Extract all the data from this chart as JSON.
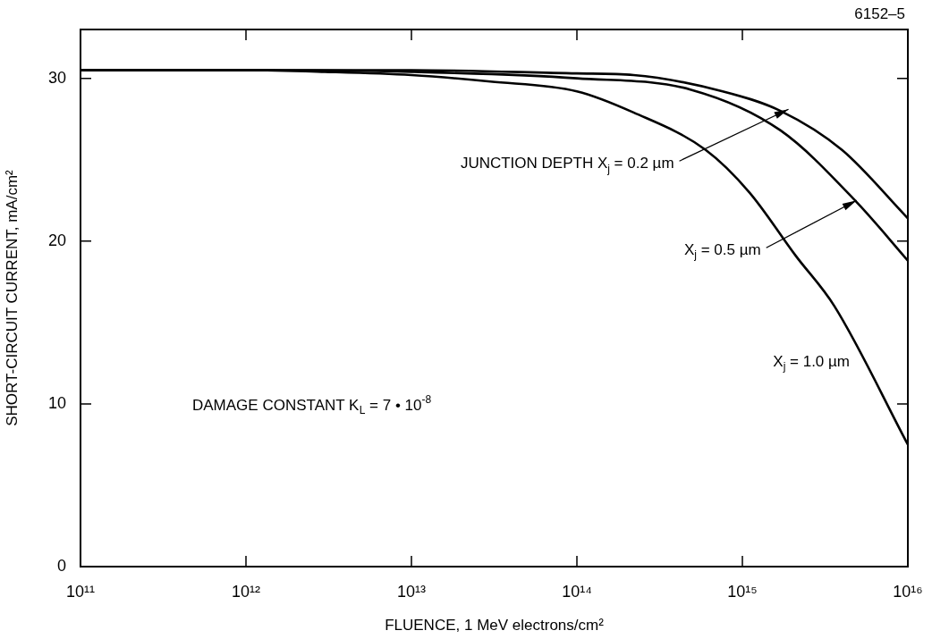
{
  "chart_data": {
    "type": "line",
    "xlabel": "FLUENCE, 1 MeV electrons/cm²",
    "ylabel": "SHORT-CIRCUIT CURRENT, mA/cm²",
    "log": "x",
    "grid": false,
    "legend": false,
    "marker": "none",
    "line_style": "solid",
    "xlim": [
      100000000000.0,
      1e+16
    ],
    "ylim": [
      0,
      33
    ],
    "xticks": [
      {
        "value": 100000000000.0,
        "label": "10¹¹"
      },
      {
        "value": 1000000000000.0,
        "label": "10¹²"
      },
      {
        "value": 10000000000000.0,
        "label": "10¹³"
      },
      {
        "value": 100000000000000.0,
        "label": "10¹⁴"
      },
      {
        "value": 1000000000000000.0,
        "label": "10¹⁵"
      },
      {
        "value": 1e+16,
        "label": "10¹⁶"
      }
    ],
    "yticks": [
      0,
      10,
      20,
      30
    ],
    "series": [
      {
        "color": "#000000",
        "x": [
          100000000000.0,
          1000000000000.0,
          10000000000000.0,
          100000000000000.0,
          220000000000000.0,
          760000000000000.0,
          1700000000000000.0,
          4000000000000000.0,
          1e+16
        ],
        "values": [
          30.5,
          30.5,
          30.5,
          30.3,
          30.2,
          29.2,
          28.0,
          25.6,
          21.4
        ]
      },
      {
        "color": "#000000",
        "x": [
          100000000000.0,
          1000000000000.0,
          10000000000000.0,
          100000000000000.0,
          490000000000000.0,
          1700000000000000.0,
          4900000000000000.0,
          1e+16
        ],
        "values": [
          30.5,
          30.5,
          30.4,
          30.0,
          29.3,
          26.8,
          22.4,
          18.8
        ]
      },
      {
        "color": "#000000",
        "x": [
          100000000000.0,
          1000000000000.0,
          3000000000000.0,
          10000000000000.0,
          30000000000000.0,
          100000000000000.0,
          220000000000000.0,
          600000000000000.0,
          1100000000000000.0,
          2100000000000000.0,
          3600000000000000.0,
          1e+16
        ],
        "values": [
          30.5,
          30.5,
          30.4,
          30.2,
          29.8,
          29.2,
          27.9,
          25.6,
          23.0,
          19.1,
          16.0,
          7.5
        ]
      }
    ],
    "annotations": [
      {
        "text": "JUNCTION DEPTH X$_{j}$ = 0.2 µm",
        "x": 1900000000000000.0,
        "y": 28.1
      },
      {
        "text": "X$_{j}$ = 0.5 µm",
        "x": 4900000000000000.0,
        "y": 22.5
      },
      "X$_{j}$ = 1.0 µm",
      "DAMAGE CONSTANT K$_{L}$ = 7 • 10$^{-8}$",
      "6152–5"
    ]
  }
}
